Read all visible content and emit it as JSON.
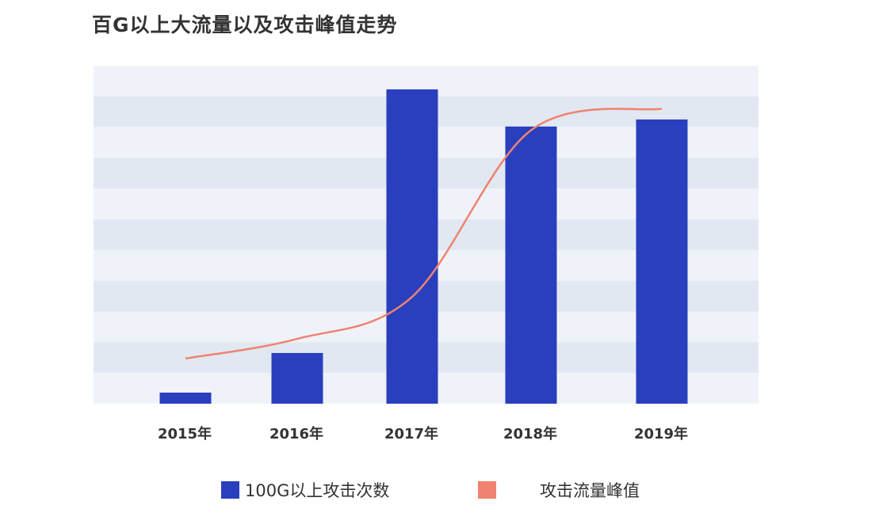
{
  "chart_data": {
    "type": "bar",
    "title": "百G以上大流量以及攻击峰值走势",
    "xlabel": "",
    "ylabel": "",
    "categories": [
      "2015年",
      "2016年",
      "2017年",
      "2018年",
      "2019年"
    ],
    "ylim": [
      0,
      11
    ],
    "grid": "alternating horizontal bands",
    "legend_position": "bottom",
    "series": [
      {
        "name": "100G以上攻击次数",
        "type": "bar",
        "color": "#2a3fbd",
        "values": [
          0.36,
          1.65,
          10.23,
          9.02,
          9.25
        ]
      },
      {
        "name": "攻击流量峰值",
        "type": "line",
        "color": "#ef8370",
        "values": [
          1.47,
          2.11,
          3.48,
          8.9,
          9.6
        ]
      }
    ]
  }
}
